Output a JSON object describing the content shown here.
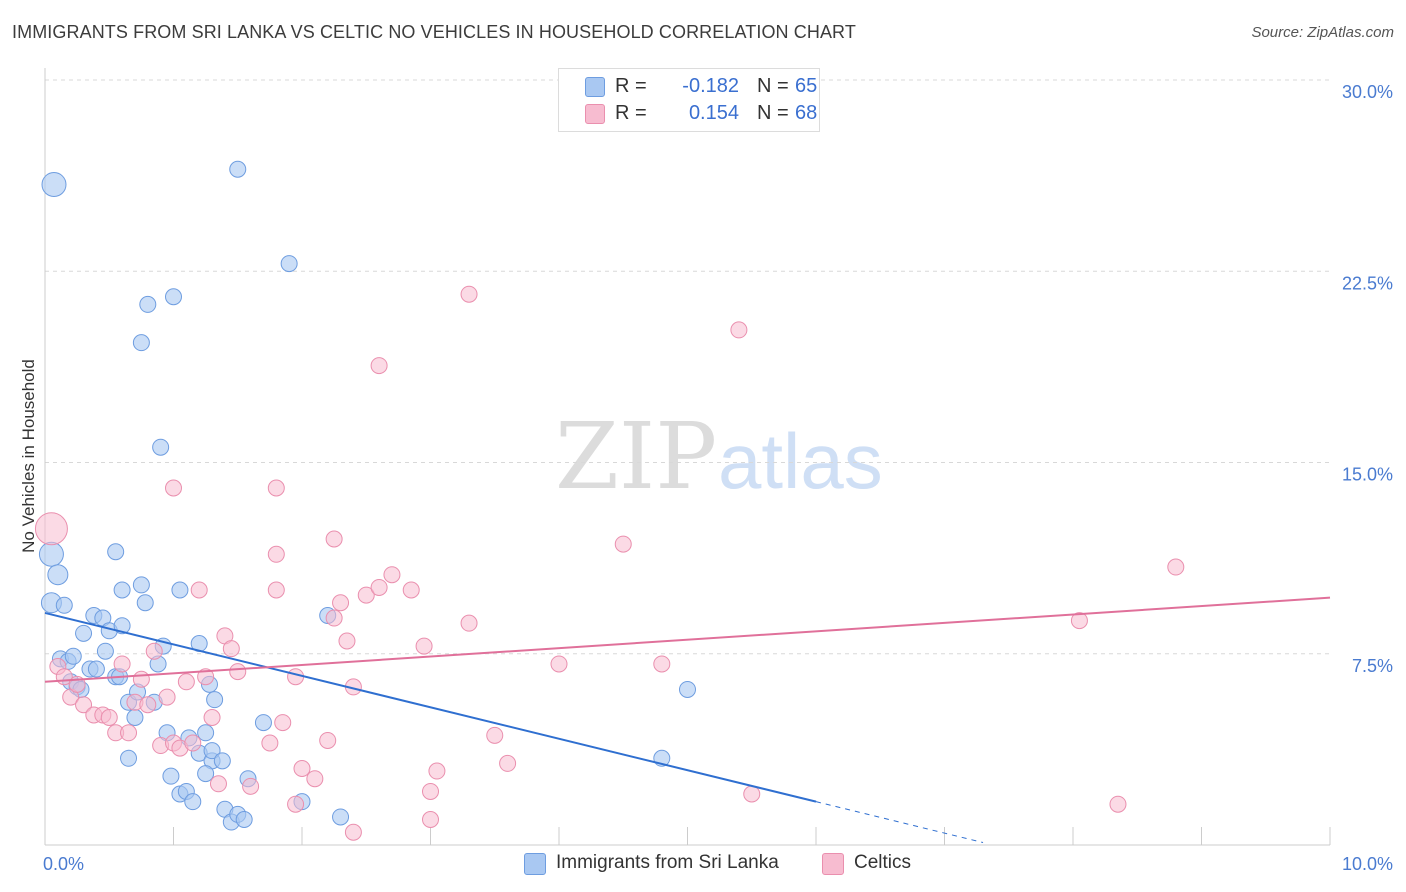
{
  "header": {
    "title": "IMMIGRANTS FROM SRI LANKA VS CELTIC NO VEHICLES IN HOUSEHOLD CORRELATION CHART",
    "source": "Source: ZipAtlas.com"
  },
  "legend": {
    "series": [
      {
        "r_label": "R =",
        "r_value": "-0.182",
        "n_label": "N =",
        "n_value": "65"
      },
      {
        "r_label": "R =",
        "r_value": "0.154",
        "n_label": "N =",
        "n_value": "68"
      }
    ]
  },
  "bottom_legend": {
    "items": [
      {
        "label": "Immigrants from Sri Lanka"
      },
      {
        "label": "Celtics"
      }
    ]
  },
  "colors": {
    "blue_fill": "#a9c8f2",
    "blue_stroke": "#6e9de0",
    "blue_line": "#2f6fd0",
    "pink_fill": "#f7bcd0",
    "pink_stroke": "#ea8fae",
    "pink_line": "#e0709a",
    "grid": "#d8d8d8",
    "tick_label": "#4a7bd0"
  },
  "chart_data": {
    "type": "scatter",
    "title": "IMMIGRANTS FROM SRI LANKA VS CELTIC NO VEHICLES IN HOUSEHOLD CORRELATION CHART",
    "xlabel": "",
    "ylabel": "No Vehicles in Household",
    "xlim": [
      0,
      10
    ],
    "ylim": [
      0,
      30
    ],
    "x_tick_labels": [
      "0.0%",
      "10.0%"
    ],
    "y_ticks": [
      7.5,
      15,
      22.5,
      30
    ],
    "y_tick_labels": [
      "7.5%",
      "15.0%",
      "22.5%",
      "30.0%"
    ],
    "grid": true,
    "watermark": {
      "zip": "ZIP",
      "atlas": "atlas"
    },
    "series": [
      {
        "name": "Immigrants from Sri Lanka",
        "color": "#a9c8f2",
        "trend": {
          "x0": 0.0,
          "y0": 9.1,
          "x1": 6.0,
          "y1": 1.7,
          "dash_to_x": 7.3
        },
        "points": [
          [
            0.07,
            25.9
          ],
          [
            0.05,
            11.4
          ],
          [
            0.1,
            10.6
          ],
          [
            0.05,
            9.5
          ],
          [
            0.15,
            9.4
          ],
          [
            0.12,
            7.3
          ],
          [
            0.18,
            7.2
          ],
          [
            0.22,
            7.4
          ],
          [
            0.2,
            6.4
          ],
          [
            0.25,
            6.2
          ],
          [
            0.28,
            6.1
          ],
          [
            0.35,
            6.9
          ],
          [
            0.4,
            6.9
          ],
          [
            0.3,
            8.3
          ],
          [
            0.38,
            9.0
          ],
          [
            0.45,
            8.9
          ],
          [
            0.5,
            8.4
          ],
          [
            0.6,
            8.6
          ],
          [
            0.47,
            7.6
          ],
          [
            0.55,
            6.6
          ],
          [
            0.58,
            6.6
          ],
          [
            0.65,
            5.6
          ],
          [
            0.7,
            5.0
          ],
          [
            0.72,
            6.0
          ],
          [
            0.85,
            5.6
          ],
          [
            0.88,
            7.1
          ],
          [
            0.92,
            7.8
          ],
          [
            0.95,
            4.4
          ],
          [
            0.98,
            2.7
          ],
          [
            1.05,
            2.0
          ],
          [
            1.1,
            2.1
          ],
          [
            1.15,
            1.7
          ],
          [
            1.12,
            4.2
          ],
          [
            1.2,
            3.6
          ],
          [
            1.3,
            3.3
          ],
          [
            1.25,
            2.8
          ],
          [
            1.4,
            1.4
          ],
          [
            1.45,
            0.9
          ],
          [
            1.5,
            1.2
          ],
          [
            1.55,
            1.0
          ],
          [
            1.3,
            3.7
          ],
          [
            1.25,
            4.4
          ],
          [
            0.65,
            3.4
          ],
          [
            0.75,
            10.2
          ],
          [
            0.78,
            9.5
          ],
          [
            1.05,
            10.0
          ],
          [
            1.2,
            7.9
          ],
          [
            1.28,
            6.3
          ],
          [
            1.32,
            5.7
          ],
          [
            1.38,
            3.3
          ],
          [
            1.7,
            4.8
          ],
          [
            1.58,
            2.6
          ],
          [
            2.0,
            1.7
          ],
          [
            2.3,
            1.1
          ],
          [
            1.0,
            21.5
          ],
          [
            0.8,
            21.2
          ],
          [
            0.75,
            19.7
          ],
          [
            0.9,
            15.6
          ],
          [
            1.5,
            26.5
          ],
          [
            1.9,
            22.8
          ],
          [
            0.55,
            11.5
          ],
          [
            0.6,
            10.0
          ],
          [
            2.2,
            9.0
          ],
          [
            4.8,
            3.4
          ],
          [
            5.0,
            6.1
          ]
        ]
      },
      {
        "name": "Celtics",
        "color": "#f7bcd0",
        "trend": {
          "x0": 0.0,
          "y0": 6.4,
          "x1": 10.0,
          "y1": 9.7
        },
        "points": [
          [
            0.05,
            12.4
          ],
          [
            0.1,
            7.0
          ],
          [
            0.15,
            6.6
          ],
          [
            0.2,
            5.8
          ],
          [
            0.25,
            6.3
          ],
          [
            0.3,
            5.5
          ],
          [
            0.38,
            5.1
          ],
          [
            0.45,
            5.1
          ],
          [
            0.5,
            5.0
          ],
          [
            0.55,
            4.4
          ],
          [
            0.6,
            7.1
          ],
          [
            0.65,
            4.4
          ],
          [
            0.7,
            5.6
          ],
          [
            0.75,
            6.5
          ],
          [
            0.8,
            5.5
          ],
          [
            0.85,
            7.6
          ],
          [
            0.9,
            3.9
          ],
          [
            0.95,
            5.8
          ],
          [
            1.0,
            4.0
          ],
          [
            1.05,
            3.8
          ],
          [
            1.1,
            6.4
          ],
          [
            1.15,
            4.0
          ],
          [
            1.2,
            10.0
          ],
          [
            1.25,
            6.6
          ],
          [
            1.3,
            5.0
          ],
          [
            1.35,
            2.4
          ],
          [
            1.4,
            8.2
          ],
          [
            1.45,
            7.7
          ],
          [
            1.5,
            6.8
          ],
          [
            1.6,
            2.3
          ],
          [
            1.75,
            4.0
          ],
          [
            1.8,
            10.0
          ],
          [
            1.85,
            4.8
          ],
          [
            1.95,
            1.6
          ],
          [
            2.0,
            3.0
          ],
          [
            2.1,
            2.6
          ],
          [
            2.2,
            4.1
          ],
          [
            2.25,
            8.9
          ],
          [
            2.3,
            9.5
          ],
          [
            2.35,
            8.0
          ],
          [
            2.5,
            9.8
          ],
          [
            2.6,
            10.1
          ],
          [
            2.7,
            10.6
          ],
          [
            2.85,
            10.0
          ],
          [
            2.95,
            7.8
          ],
          [
            3.0,
            2.1
          ],
          [
            3.05,
            2.9
          ],
          [
            3.3,
            8.7
          ],
          [
            3.5,
            4.3
          ],
          [
            3.6,
            3.2
          ],
          [
            4.0,
            7.1
          ],
          [
            4.5,
            11.8
          ],
          [
            4.8,
            7.1
          ],
          [
            5.5,
            2.0
          ],
          [
            8.05,
            8.8
          ],
          [
            8.35,
            1.6
          ],
          [
            8.8,
            10.9
          ],
          [
            2.25,
            12.0
          ],
          [
            1.8,
            11.4
          ],
          [
            2.6,
            18.8
          ],
          [
            3.3,
            21.6
          ],
          [
            5.4,
            20.2
          ],
          [
            1.0,
            14.0
          ],
          [
            1.8,
            14.0
          ],
          [
            1.95,
            6.6
          ],
          [
            2.4,
            6.2
          ],
          [
            2.4,
            0.5
          ],
          [
            3.0,
            1.0
          ]
        ]
      }
    ]
  }
}
